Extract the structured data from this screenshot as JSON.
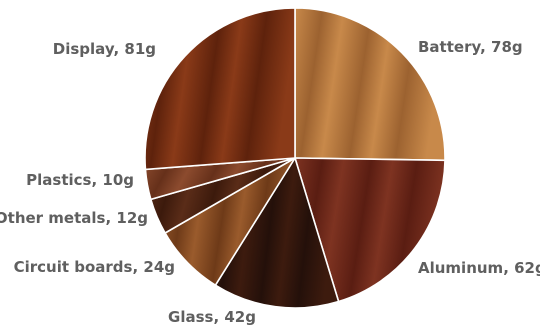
{
  "chart_data": {
    "type": "pie",
    "title": "",
    "unit": "g",
    "slices": [
      {
        "label": "Battery, 78g",
        "name": "Battery",
        "value": 78,
        "color": "#c8894a",
        "grain": "#9c6230"
      },
      {
        "label": "Aluminum, 62g",
        "name": "Aluminum",
        "value": 62,
        "color": "#7e3321",
        "grain": "#5a1d12"
      },
      {
        "label": "Glass, 42g",
        "name": "Glass",
        "value": 42,
        "color": "#3d1b0e",
        "grain": "#24100a"
      },
      {
        "label": "Circuit boards, 24g",
        "name": "Circuit boards",
        "value": 24,
        "color": "#9a5b2c",
        "grain": "#6e3a18"
      },
      {
        "label": "Other metals, 12g",
        "name": "Other metals",
        "value": 12,
        "color": "#5a2c18",
        "grain": "#3c1a0c"
      },
      {
        "label": "Plastics, 10g",
        "name": "Plastics",
        "value": 10,
        "color": "#8c4b2e",
        "grain": "#66301a"
      },
      {
        "label": "Display, 81g",
        "name": "Display",
        "value": 81,
        "color": "#8a3a18",
        "grain": "#5e220c"
      }
    ]
  }
}
